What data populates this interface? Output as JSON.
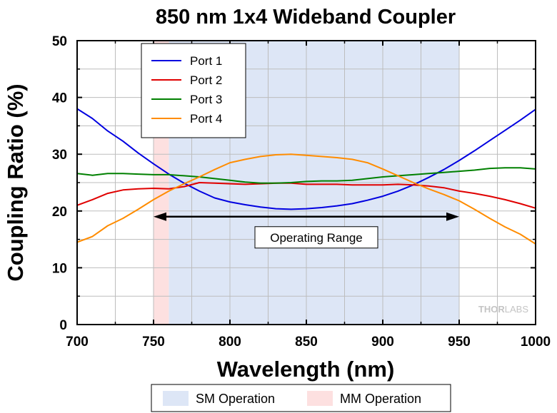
{
  "chart_data": {
    "type": "line",
    "title": "850 nm 1x4 Wideband Coupler",
    "xlabel": "Wavelength (nm)",
    "ylabel": "Coupling Ratio (%)",
    "xlim": [
      700,
      1000
    ],
    "ylim": [
      0,
      50
    ],
    "xticks": [
      "700",
      "750",
      "800",
      "850",
      "900",
      "950",
      "1000"
    ],
    "yticks": [
      "0",
      "10",
      "20",
      "30",
      "40",
      "50"
    ],
    "grid": true,
    "legend_position": "top-left",
    "series": [
      {
        "name": "Port 1",
        "color": "#0000e0",
        "x": [
          700,
          710,
          720,
          730,
          740,
          750,
          760,
          770,
          780,
          790,
          800,
          810,
          820,
          830,
          840,
          850,
          860,
          870,
          880,
          890,
          900,
          910,
          920,
          930,
          940,
          950,
          960,
          970,
          980,
          990,
          1000
        ],
        "y": [
          38,
          36.3,
          34.1,
          32.3,
          30.2,
          28.3,
          26.5,
          24.9,
          23.5,
          22.3,
          21.6,
          21.1,
          20.7,
          20.4,
          20.3,
          20.4,
          20.6,
          20.9,
          21.3,
          21.9,
          22.6,
          23.5,
          24.6,
          25.9,
          27.3,
          28.9,
          30.6,
          32.4,
          34.2,
          36.0,
          37.9
        ]
      },
      {
        "name": "Port 2",
        "color": "#e00000",
        "x": [
          700,
          710,
          720,
          730,
          740,
          750,
          760,
          770,
          780,
          790,
          800,
          810,
          820,
          830,
          840,
          850,
          860,
          870,
          880,
          890,
          900,
          910,
          920,
          930,
          940,
          950,
          960,
          970,
          980,
          990,
          1000
        ],
        "y": [
          21,
          22,
          23.1,
          23.7,
          23.9,
          24,
          23.9,
          24.3,
          25,
          24.9,
          24.8,
          24.7,
          24.8,
          24.9,
          24.9,
          24.7,
          24.7,
          24.7,
          24.6,
          24.6,
          24.6,
          24.7,
          24.6,
          24.4,
          24.1,
          23.5,
          23.1,
          22.6,
          22,
          21.3,
          20.5
        ]
      },
      {
        "name": "Port 3",
        "color": "#008000",
        "x": [
          700,
          710,
          720,
          730,
          740,
          750,
          760,
          770,
          780,
          790,
          800,
          810,
          820,
          830,
          840,
          850,
          860,
          870,
          880,
          890,
          900,
          910,
          920,
          930,
          940,
          950,
          960,
          970,
          980,
          990,
          1000
        ],
        "y": [
          26.6,
          26.3,
          26.6,
          26.6,
          26.5,
          26.4,
          26.4,
          26.2,
          26,
          25.7,
          25.4,
          25.1,
          24.9,
          24.9,
          25,
          25.2,
          25.3,
          25.3,
          25.4,
          25.7,
          26,
          26.2,
          26.4,
          26.6,
          26.8,
          27,
          27.2,
          27.5,
          27.6,
          27.6,
          27.4
        ]
      },
      {
        "name": "Port 4",
        "color": "#ff8c00",
        "x": [
          700,
          710,
          720,
          730,
          740,
          750,
          760,
          770,
          780,
          790,
          800,
          810,
          820,
          830,
          840,
          850,
          860,
          870,
          880,
          890,
          900,
          910,
          920,
          930,
          940,
          950,
          960,
          970,
          980,
          990,
          1000
        ],
        "y": [
          14.5,
          15.5,
          17.4,
          18.7,
          20.3,
          22,
          23.5,
          24.8,
          26,
          27.3,
          28.5,
          29.1,
          29.6,
          29.9,
          30,
          29.8,
          29.6,
          29.4,
          29.1,
          28.5,
          27.4,
          26.2,
          25,
          23.9,
          22.9,
          21.8,
          20.3,
          18.7,
          17.2,
          15.9,
          14.2
        ]
      }
    ],
    "regions": [
      {
        "name": "SM Operation",
        "x_start": 760,
        "x_end": 950,
        "color": "#dde6f6"
      },
      {
        "name": "MM Operation",
        "x_start": 750,
        "x_end": 760,
        "color": "#fde0e0"
      }
    ],
    "annotations": [
      {
        "text": "Operating Range",
        "x_start": 750,
        "x_end": 950,
        "y": 19
      }
    ],
    "watermark": {
      "bold": "THOR",
      "thin": "LABS"
    }
  }
}
